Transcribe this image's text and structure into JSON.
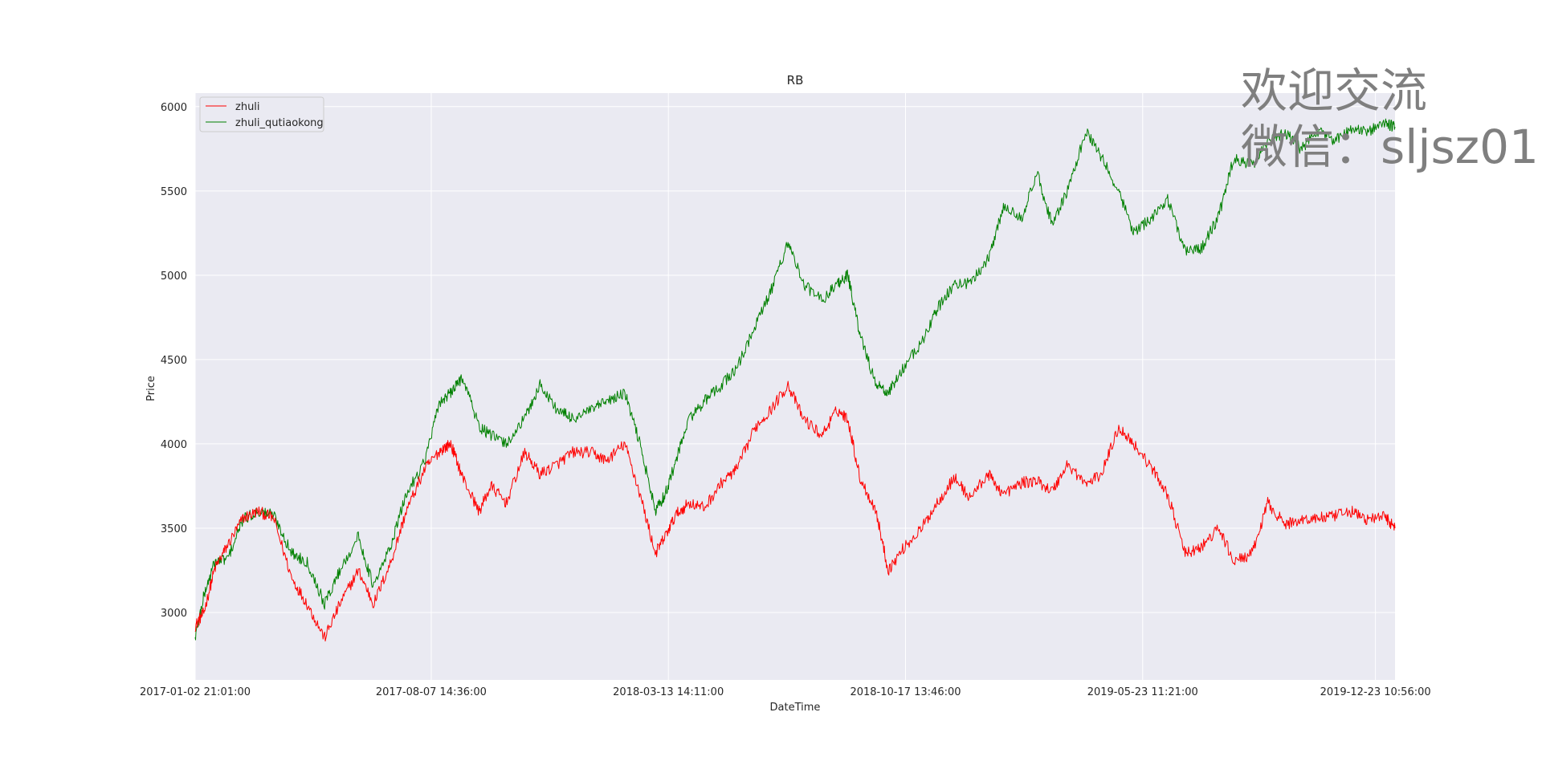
{
  "chart_data": {
    "type": "line",
    "title": "RB",
    "xlabel": "DateTime",
    "ylabel": "Price",
    "ylim": [
      2600,
      6080
    ],
    "y_ticks": [
      3000,
      3500,
      4000,
      4500,
      5000,
      5500,
      6000
    ],
    "x_ticks": [
      "2017-01-02 21:01:00",
      "2017-08-07 14:36:00",
      "2018-03-13 14:11:00",
      "2018-10-17 13:46:00",
      "2019-05-23 11:21:00",
      "2019-12-23 10:56:00"
    ],
    "x_range": [
      "2017-01-02",
      "2020-01-10"
    ],
    "grid": true,
    "legend_position": "top-left",
    "series": [
      {
        "name": "zhuli",
        "color": "#ff0000",
        "x": [
          "2017-01-02",
          "2017-01-10",
          "2017-01-20",
          "2017-02-01",
          "2017-02-15",
          "2017-03-01",
          "2017-03-15",
          "2017-04-01",
          "2017-04-15",
          "2017-05-01",
          "2017-05-15",
          "2017-06-01",
          "2017-06-15",
          "2017-07-01",
          "2017-07-15",
          "2017-08-01",
          "2017-08-15",
          "2017-08-25",
          "2017-09-05",
          "2017-09-20",
          "2017-10-01",
          "2017-10-15",
          "2017-11-01",
          "2017-11-15",
          "2017-12-01",
          "2017-12-15",
          "2018-01-01",
          "2018-01-15",
          "2018-02-01",
          "2018-02-15",
          "2018-03-01",
          "2018-03-10",
          "2018-03-20",
          "2018-04-01",
          "2018-04-15",
          "2018-05-01",
          "2018-05-15",
          "2018-06-01",
          "2018-06-15",
          "2018-07-01",
          "2018-07-15",
          "2018-08-01",
          "2018-08-15",
          "2018-08-25",
          "2018-09-05",
          "2018-09-20",
          "2018-10-01",
          "2018-10-15",
          "2018-11-01",
          "2018-11-15",
          "2018-12-01",
          "2018-12-15",
          "2019-01-01",
          "2019-01-15",
          "2019-02-01",
          "2019-02-15",
          "2019-03-01",
          "2019-03-15",
          "2019-04-01",
          "2019-04-15",
          "2019-05-01",
          "2019-05-15",
          "2019-06-01",
          "2019-06-15",
          "2019-07-01",
          "2019-07-15",
          "2019-08-01",
          "2019-08-15",
          "2019-09-01",
          "2019-09-15",
          "2019-10-01",
          "2019-10-15",
          "2019-11-01",
          "2019-11-15",
          "2019-12-01",
          "2019-12-15",
          "2020-01-01",
          "2020-01-10"
        ],
        "y": [
          2920,
          3000,
          3260,
          3400,
          3560,
          3600,
          3560,
          3200,
          3050,
          2850,
          3050,
          3250,
          3050,
          3300,
          3600,
          3850,
          3960,
          4000,
          3800,
          3600,
          3750,
          3650,
          3950,
          3820,
          3880,
          3950,
          3950,
          3900,
          4000,
          3700,
          3350,
          3450,
          3580,
          3650,
          3620,
          3770,
          3850,
          4100,
          4200,
          4350,
          4150,
          4050,
          4200,
          4150,
          3800,
          3600,
          3250,
          3380,
          3500,
          3650,
          3800,
          3680,
          3820,
          3700,
          3770,
          3780,
          3720,
          3880,
          3760,
          3820,
          4100,
          4000,
          3850,
          3700,
          3350,
          3380,
          3500,
          3300,
          3350,
          3650,
          3520,
          3550,
          3560,
          3570,
          3600,
          3550,
          3570,
          3500
        ]
      },
      {
        "name": "zhuli_qutiaokong",
        "color": "#008000",
        "x": [
          "2017-01-02",
          "2017-01-10",
          "2017-01-20",
          "2017-02-01",
          "2017-02-15",
          "2017-03-01",
          "2017-03-15",
          "2017-04-01",
          "2017-04-15",
          "2017-05-01",
          "2017-05-15",
          "2017-06-01",
          "2017-06-15",
          "2017-07-01",
          "2017-07-15",
          "2017-08-01",
          "2017-08-15",
          "2017-08-25",
          "2017-09-05",
          "2017-09-20",
          "2017-10-01",
          "2017-10-15",
          "2017-11-01",
          "2017-11-15",
          "2017-12-01",
          "2017-12-15",
          "2018-01-01",
          "2018-01-15",
          "2018-02-01",
          "2018-02-15",
          "2018-03-01",
          "2018-03-10",
          "2018-03-20",
          "2018-04-01",
          "2018-04-15",
          "2018-05-01",
          "2018-05-15",
          "2018-06-01",
          "2018-06-15",
          "2018-07-01",
          "2018-07-15",
          "2018-08-01",
          "2018-08-15",
          "2018-08-25",
          "2018-09-05",
          "2018-09-20",
          "2018-10-01",
          "2018-10-15",
          "2018-11-01",
          "2018-11-15",
          "2018-12-01",
          "2018-12-15",
          "2019-01-01",
          "2019-01-15",
          "2019-02-01",
          "2019-02-15",
          "2019-03-01",
          "2019-03-15",
          "2019-04-01",
          "2019-04-15",
          "2019-05-01",
          "2019-05-15",
          "2019-06-01",
          "2019-06-15",
          "2019-07-01",
          "2019-07-15",
          "2019-08-01",
          "2019-08-15",
          "2019-09-01",
          "2019-09-15",
          "2019-10-01",
          "2019-10-15",
          "2019-11-01",
          "2019-11-15",
          "2019-12-01",
          "2019-12-15",
          "2020-01-01",
          "2020-01-10"
        ],
        "y": [
          2850,
          3100,
          3300,
          3320,
          3550,
          3600,
          3580,
          3350,
          3300,
          3050,
          3250,
          3450,
          3150,
          3400,
          3700,
          3900,
          4250,
          4300,
          4400,
          4100,
          4050,
          4000,
          4150,
          4350,
          4200,
          4150,
          4200,
          4250,
          4300,
          4000,
          3600,
          3700,
          3900,
          4150,
          4250,
          4350,
          4450,
          4700,
          4900,
          5200,
          4950,
          4850,
          4950,
          5000,
          4650,
          4350,
          4300,
          4450,
          4600,
          4800,
          4950,
          4950,
          5100,
          5400,
          5350,
          5600,
          5300,
          5500,
          5850,
          5700,
          5500,
          5250,
          5350,
          5450,
          5150,
          5150,
          5350,
          5700,
          5650,
          5800,
          5850,
          5750,
          5850,
          5800,
          5860,
          5850,
          5900,
          5880
        ]
      }
    ]
  },
  "watermark": {
    "line1": "欢迎交流",
    "line2": "微信：sljsz01"
  }
}
